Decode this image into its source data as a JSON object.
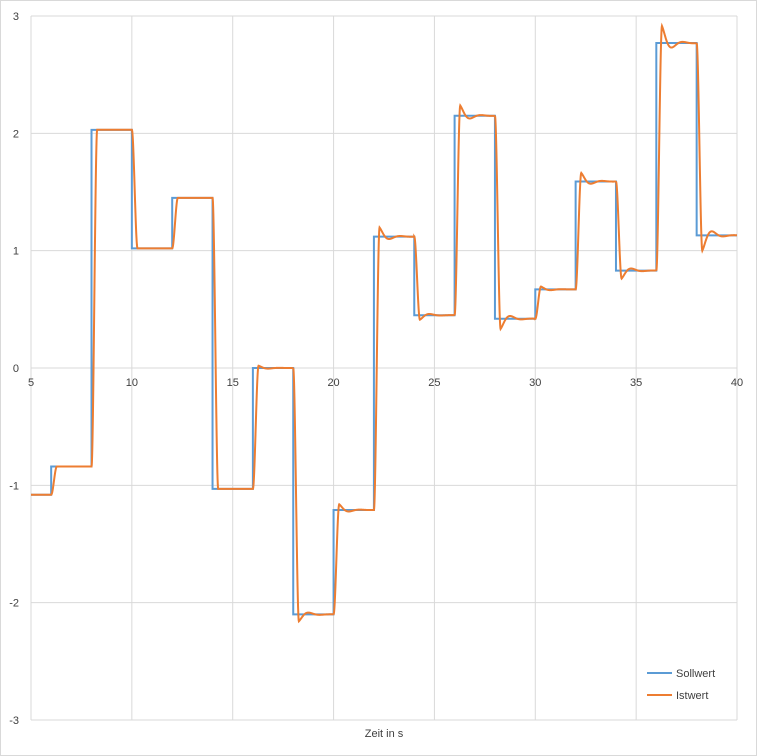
{
  "chart_data": {
    "type": "line",
    "title": "",
    "xlabel": "Zeit in s",
    "ylabel": "",
    "xlim": [
      5,
      40
    ],
    "ylim": [
      -3,
      3
    ],
    "x_ticks": [
      "5",
      "10",
      "15",
      "20",
      "25",
      "30",
      "35",
      "40"
    ],
    "y_ticks": [
      "-3",
      "-2",
      "-1",
      "0",
      "1",
      "2",
      "3"
    ],
    "grid": true,
    "legend_position": "bottom-right",
    "colors": {
      "sollwert": "#5b9bd5",
      "istwert": "#ed7d31",
      "grid": "#d9d9d9"
    },
    "series": [
      {
        "name": "Sollwert",
        "color": "#5b9bd5",
        "step_points": [
          [
            5,
            -1.08
          ],
          [
            6,
            -0.84
          ],
          [
            8,
            2.03
          ],
          [
            10,
            1.02
          ],
          [
            12,
            1.45
          ],
          [
            14,
            -1.03
          ],
          [
            16,
            0.0
          ],
          [
            18,
            -2.1
          ],
          [
            20,
            -1.21
          ],
          [
            22,
            1.12
          ],
          [
            24,
            0.45
          ],
          [
            26,
            2.15
          ],
          [
            28,
            0.42
          ],
          [
            30,
            0.67
          ],
          [
            32,
            1.59
          ],
          [
            34,
            0.83
          ],
          [
            36,
            2.77
          ],
          [
            38,
            1.13
          ],
          [
            40,
            1.13
          ]
        ]
      },
      {
        "name": "Istwert",
        "color": "#ed7d31",
        "steps": [
          {
            "t": 5.0,
            "from": -1.08,
            "to": -1.08,
            "overshoot": 0
          },
          {
            "t": 6.0,
            "from": -1.08,
            "to": -0.84,
            "overshoot": 0
          },
          {
            "t": 8.0,
            "from": -0.84,
            "to": 2.03,
            "overshoot": 0
          },
          {
            "t": 10.0,
            "from": 2.03,
            "to": 1.02,
            "overshoot": 0
          },
          {
            "t": 12.0,
            "from": 1.02,
            "to": 1.45,
            "overshoot": 0
          },
          {
            "t": 14.0,
            "from": 1.45,
            "to": -1.03,
            "overshoot": 0
          },
          {
            "t": 16.0,
            "from": -1.03,
            "to": 0.0,
            "overshoot": 0.04
          },
          {
            "t": 18.0,
            "from": 0.0,
            "to": -2.1,
            "overshoot": 0.12
          },
          {
            "t": 20.0,
            "from": -2.1,
            "to": -1.21,
            "overshoot": 0.1
          },
          {
            "t": 22.0,
            "from": -1.21,
            "to": 1.12,
            "overshoot": 0.16
          },
          {
            "t": 24.0,
            "from": 1.12,
            "to": 0.45,
            "overshoot": 0.08
          },
          {
            "t": 26.0,
            "from": 0.45,
            "to": 2.15,
            "overshoot": 0.18
          },
          {
            "t": 28.0,
            "from": 2.15,
            "to": 0.42,
            "overshoot": 0.18
          },
          {
            "t": 30.0,
            "from": 0.42,
            "to": 0.67,
            "overshoot": 0.05
          },
          {
            "t": 32.0,
            "from": 0.67,
            "to": 1.59,
            "overshoot": 0.15
          },
          {
            "t": 34.0,
            "from": 1.59,
            "to": 0.83,
            "overshoot": 0.14
          },
          {
            "t": 36.0,
            "from": 0.83,
            "to": 2.77,
            "overshoot": 0.3
          },
          {
            "t": 38.0,
            "from": 2.77,
            "to": 1.13,
            "overshoot": 0.27
          }
        ]
      }
    ]
  }
}
